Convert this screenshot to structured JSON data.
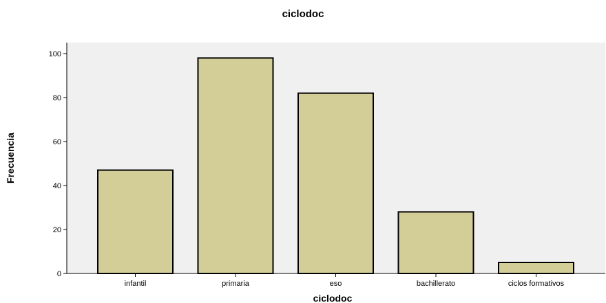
{
  "chart_data": {
    "type": "bar",
    "title": "ciclodoc",
    "xlabel": "ciclodoc",
    "ylabel": "Frecuencia",
    "categories": [
      "infantil",
      "primaria",
      "eso",
      "bachillerato",
      "ciclos formativos"
    ],
    "values": [
      47,
      98,
      82,
      28,
      5
    ],
    "ylim": [
      0,
      105
    ],
    "yticks": [
      "0",
      "20",
      "40",
      "60",
      "80",
      "100"
    ],
    "grid": false,
    "legend": "none",
    "colors": {
      "bar_fill": "#d3cd97",
      "bar_stroke": "#000000",
      "plot_background": "#f0f0f0"
    }
  }
}
